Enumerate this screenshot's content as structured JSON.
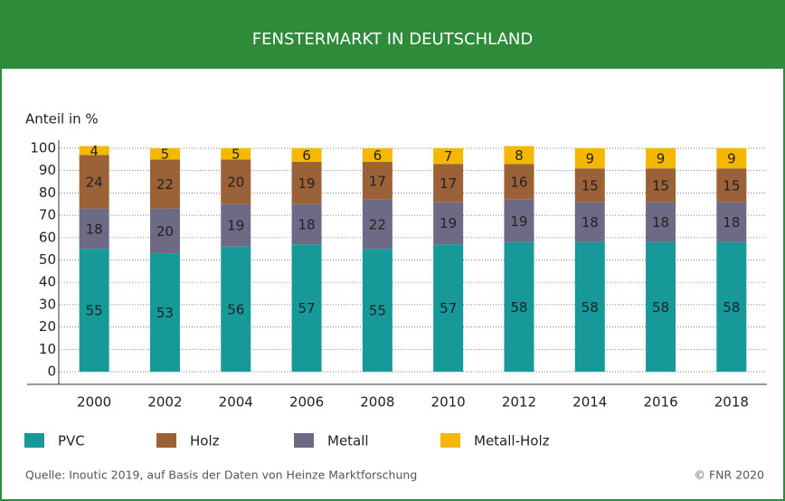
{
  "chart_data": {
    "type": "stacked_bar",
    "title": "FENSTERMARKT IN DEUTSCHLAND",
    "y_label": "Anteil in %",
    "categories": [
      "2000",
      "2002",
      "2004",
      "2006",
      "2008",
      "2010",
      "2012",
      "2014",
      "2016",
      "2018"
    ],
    "series": [
      {
        "name": "PVC",
        "color": "#17999a",
        "values": [
          55,
          53,
          56,
          57,
          55,
          57,
          58,
          58,
          58,
          58
        ]
      },
      {
        "name": "Holz",
        "color": "#9a6236",
        "values": [
          24,
          22,
          20,
          19,
          17,
          17,
          16,
          15,
          15,
          15
        ]
      },
      {
        "name": "Metall",
        "color": "#6d6a86",
        "values": [
          18,
          20,
          19,
          18,
          22,
          19,
          19,
          18,
          18,
          18
        ]
      },
      {
        "name": "Metall-Holz",
        "color": "#f5b700",
        "values": [
          4,
          5,
          5,
          6,
          6,
          7,
          8,
          9,
          9,
          9
        ]
      }
    ],
    "ylim": [
      0,
      100
    ],
    "yticks": [
      0,
      10,
      20,
      30,
      40,
      50,
      60,
      70,
      80,
      90,
      100
    ],
    "grid": true,
    "source": "Quelle: Inoutic 2019, auf Basis der Daten von Heinze Marktforschung",
    "copyright": "© FNR 2020"
  }
}
